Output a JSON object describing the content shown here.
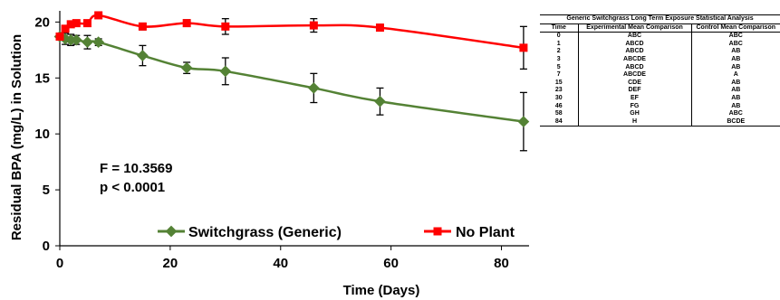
{
  "chart_data": {
    "type": "line",
    "xlabel": "Time (Days)",
    "ylabel": "Residual BPA (mg/L) in Solution",
    "xlim": [
      0,
      85
    ],
    "ylim": [
      0,
      21
    ],
    "xticks": [
      0,
      20,
      40,
      60,
      80
    ],
    "yticks": [
      0,
      5,
      10,
      15,
      20
    ],
    "grid": false,
    "legend_position": "bottom",
    "annotations": [
      "F = 10.3569",
      "p < 0.0001"
    ],
    "series": [
      {
        "name": "Switchgrass (Generic)",
        "color": "#548235",
        "marker": "diamond",
        "x": [
          0,
          1,
          2,
          3,
          5,
          7,
          15,
          23,
          30,
          46,
          58,
          84
        ],
        "y": [
          18.7,
          18.5,
          18.4,
          18.4,
          18.2,
          18.2,
          17.0,
          15.9,
          15.6,
          14.1,
          12.9,
          11.1
        ],
        "err": [
          0.3,
          0.5,
          0.5,
          0.4,
          0.6,
          0.3,
          0.9,
          0.5,
          1.2,
          1.3,
          1.2,
          2.6
        ]
      },
      {
        "name": "No Plant",
        "color": "#ff0000",
        "marker": "square",
        "x": [
          0,
          1,
          2,
          3,
          5,
          7,
          15,
          23,
          30,
          46,
          58,
          84
        ],
        "y": [
          18.7,
          19.4,
          19.8,
          19.9,
          19.9,
          20.6,
          19.6,
          19.9,
          19.6,
          19.7,
          19.5,
          17.7
        ],
        "err": [
          0.2,
          0.2,
          0.2,
          0.2,
          0.2,
          0.2,
          0.3,
          0.3,
          0.7,
          0.6,
          0.3,
          1.9
        ]
      }
    ]
  },
  "table": {
    "title": "Generic Switchgrass Long Term Exposure Statistical Analysis",
    "headers": [
      "Time",
      "Experimental Mean Comparison",
      "Control Mean Comparison"
    ],
    "rows": [
      [
        "0",
        "ABC",
        "ABC"
      ],
      [
        "1",
        "ABCD",
        "ABC"
      ],
      [
        "2",
        "ABCD",
        "AB"
      ],
      [
        "3",
        "ABCDE",
        "AB"
      ],
      [
        "5",
        "ABCD",
        "AB"
      ],
      [
        "7",
        "ABCDE",
        "A"
      ],
      [
        "15",
        "CDE",
        "AB"
      ],
      [
        "23",
        "DEF",
        "AB"
      ],
      [
        "30",
        "EF",
        "AB"
      ],
      [
        "46",
        "FG",
        "AB"
      ],
      [
        "58",
        "GH",
        "ABC"
      ],
      [
        "84",
        "H",
        "BCDE"
      ]
    ]
  }
}
